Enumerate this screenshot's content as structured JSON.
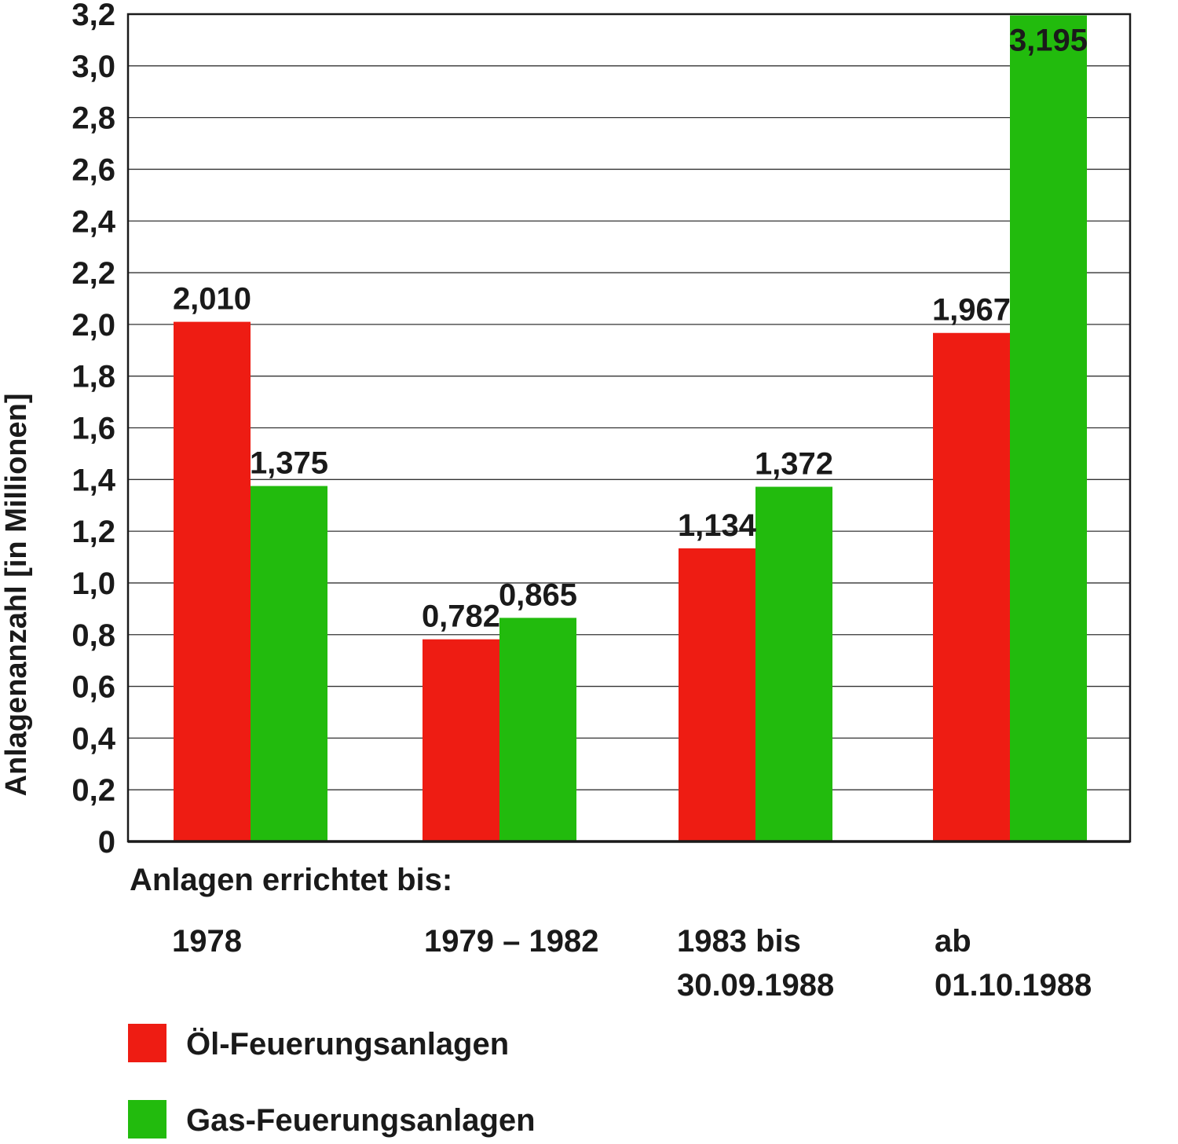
{
  "chart_data": {
    "type": "bar",
    "ylabel": "Anlagenanzahl [in Millionen]",
    "xlabel": "Anlagen errichtet bis:",
    "categories": [
      "1978",
      "1979 – 1982",
      "1983 bis\n30.09.1988",
      "ab\n01.10.1988"
    ],
    "ylim": [
      0,
      3.2
    ],
    "y_ticks": [
      "0",
      "0,2",
      "0,4",
      "0,6",
      "0,8",
      "1,0",
      "1,2",
      "1,4",
      "1,6",
      "1,8",
      "2,0",
      "2,2",
      "2,4",
      "2,6",
      "2,8",
      "3,0",
      "3,2"
    ],
    "grid": true,
    "legend_position": "bottom-left",
    "series": [
      {
        "name": "Öl-Feuerungsanlagen",
        "color": "#ee1c13",
        "values": [
          2.01,
          0.782,
          1.134,
          1.967
        ],
        "labels": [
          "2,010",
          "0,782",
          "1,134",
          "1,967"
        ]
      },
      {
        "name": "Gas-Feuerungsanlagen",
        "color": "#22bb0d",
        "values": [
          1.375,
          0.865,
          1.372,
          3.195
        ],
        "labels": [
          "1,375",
          "0,865",
          "1,372",
          "3,195"
        ]
      }
    ]
  }
}
